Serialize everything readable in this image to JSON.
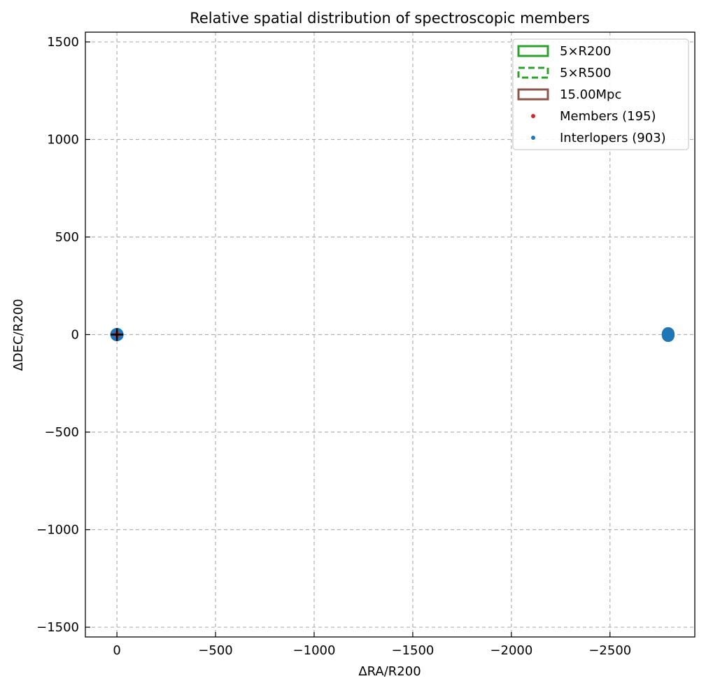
{
  "chart_data": {
    "type": "scatter",
    "title": "Relative spatial distribution of spectroscopic members",
    "xlabel": "ΔRA/R200",
    "ylabel": "ΔDEC/R200",
    "xlim": [
      160,
      -2930
    ],
    "ylim": [
      -1550,
      1550
    ],
    "x_inverted": true,
    "grid": true,
    "legend_position": "top-right",
    "x_ticks": [
      0,
      -500,
      -1000,
      -1500,
      -2000,
      -2500
    ],
    "x_tick_labels": [
      "0",
      "−500",
      "−1000",
      "−1500",
      "−2000",
      "−2500"
    ],
    "y_ticks": [
      1500,
      1000,
      500,
      0,
      -500,
      -1000,
      -1500
    ],
    "y_tick_labels": [
      "1500",
      "1000",
      "500",
      "0",
      "−500",
      "−1000",
      "−1500"
    ],
    "legend": [
      {
        "label": "5×R200",
        "kind": "rect",
        "color": "#2ca02c",
        "style": "solid"
      },
      {
        "label": "5×R500",
        "kind": "rect",
        "color": "#2ca02c",
        "style": "dashed"
      },
      {
        "label": "15.00Mpc",
        "kind": "rect",
        "color": "#8c564b",
        "style": "solid"
      },
      {
        "label": "Members (195)",
        "kind": "dot",
        "color": "#d62728"
      },
      {
        "label": "Interlopers (903)",
        "kind": "dot",
        "color": "#1f77b4"
      }
    ],
    "series": [
      {
        "name": "Interlopers (903)",
        "color": "#1f77b4",
        "points": [
          [
            0,
            0
          ],
          [
            -1,
            2
          ],
          [
            1,
            -2
          ],
          [
            -2,
            -1
          ],
          [
            2,
            1
          ],
          [
            -2795,
            0
          ],
          [
            -2795,
            3
          ],
          [
            -2795,
            -3
          ],
          [
            -2794,
            1
          ],
          [
            -2796,
            -1
          ],
          [
            -2795,
            6
          ],
          [
            -2795,
            -6
          ]
        ]
      },
      {
        "name": "Members (195)",
        "color": "#d62728",
        "points": [
          [
            0,
            0
          ],
          [
            0.5,
            0.5
          ],
          [
            -0.5,
            -0.5
          ]
        ]
      }
    ],
    "center_marker": {
      "x": 0,
      "y": 0,
      "color": "#000000"
    },
    "region_rects": [
      {
        "name": "5×R200",
        "x0": -5,
        "x1": 5,
        "y0": -5,
        "y1": 5,
        "color": "#2ca02c",
        "style": "solid"
      },
      {
        "name": "5×R500",
        "x0": -3.3,
        "x1": 3.3,
        "y0": -3.3,
        "y1": 3.3,
        "color": "#2ca02c",
        "style": "dashed"
      },
      {
        "name": "15.00Mpc",
        "x0": -6,
        "x1": 6,
        "y0": -6,
        "y1": 6,
        "color": "#8c564b",
        "style": "solid"
      }
    ]
  }
}
